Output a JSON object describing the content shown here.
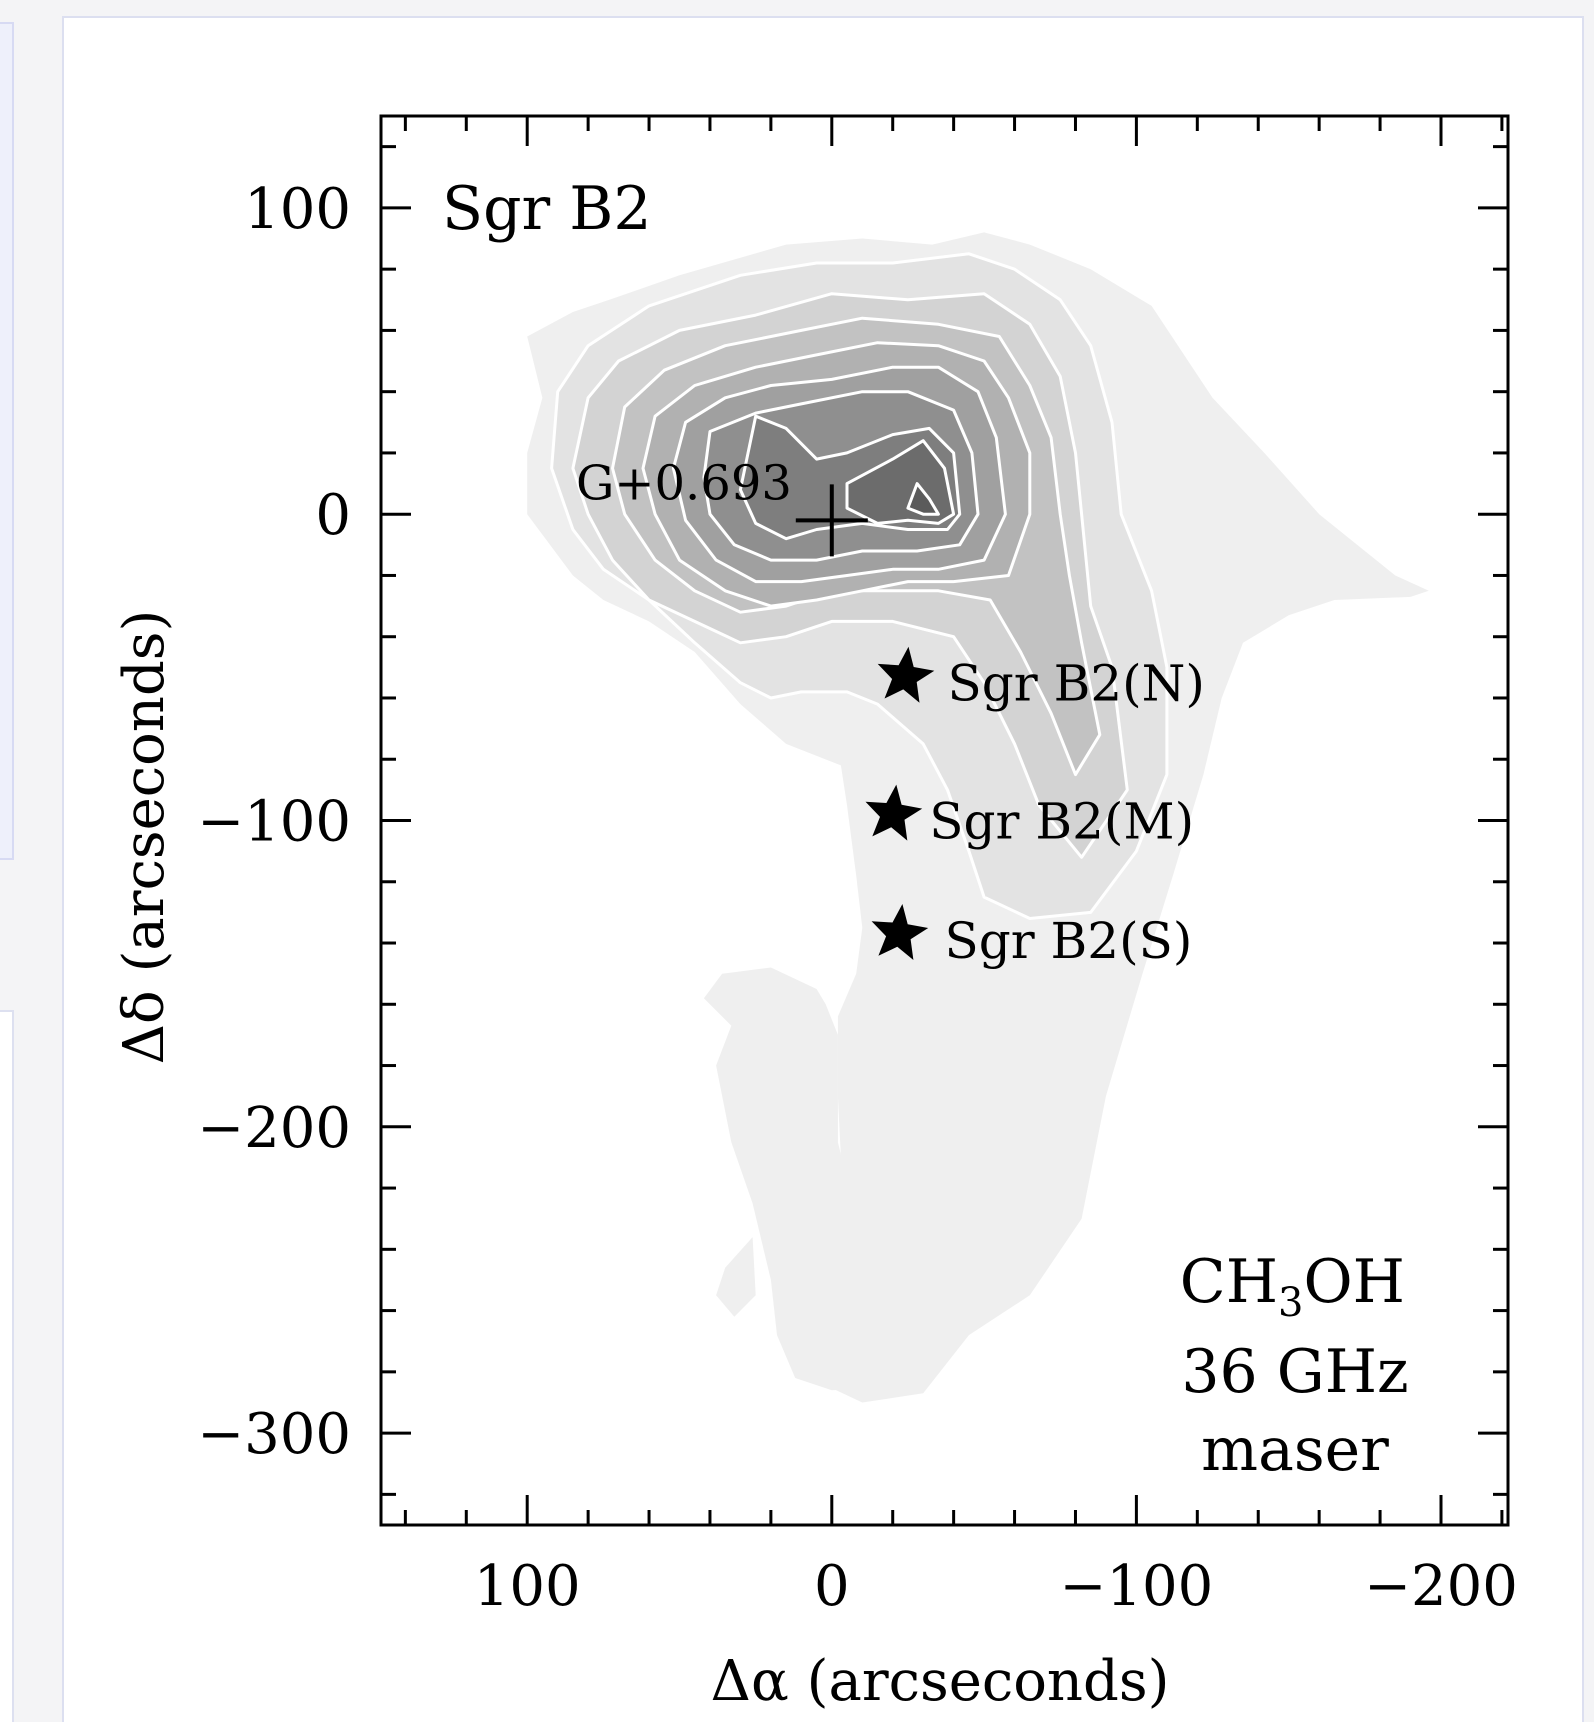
{
  "chart_data": {
    "type": "contour",
    "xlabel": "Δα (arcseconds)",
    "ylabel": "Δδ (arcseconds)",
    "xlim": [
      148,
      -222
    ],
    "ylim": [
      -330,
      130
    ],
    "x_reversed": true,
    "x_ticks": [
      100,
      0,
      -100,
      -200
    ],
    "x_tick_labels": [
      "100",
      "0",
      "−100",
      "−200"
    ],
    "y_ticks": [
      100,
      0,
      -100,
      -200,
      -300
    ],
    "y_tick_labels": [
      "100",
      "0",
      "−100",
      "−200",
      "−300"
    ],
    "x_minor_step": 20,
    "y_minor_step": 20,
    "grid": false,
    "title": "Sgr B2",
    "molecule_text": "CH",
    "molecule_sub": "3",
    "molecule_suffix": "OH",
    "line_text": "36 GHz",
    "type_text": "maser",
    "colors": {
      "levels": [
        "#efefef",
        "#e3e3e3",
        "#d3d3d3",
        "#c2c2c2",
        "#b1b1b1",
        "#a0a0a0",
        "#8f8f8f",
        "#7e7e7e",
        "#6c6c6c",
        "#5b5b5b"
      ],
      "contour_line": "#ffffff",
      "marker": "#000000"
    },
    "contour_levels": [
      {
        "level": 1,
        "polygons": [
          [
            [
              100,
              58
            ],
            [
              85,
              66
            ],
            [
              73,
              70
            ],
            [
              50,
              78
            ],
            [
              15,
              88
            ],
            [
              -10,
              90
            ],
            [
              -33,
              88
            ],
            [
              -50,
              92
            ],
            [
              -65,
              88
            ],
            [
              -85,
              80
            ],
            [
              -105,
              68
            ],
            [
              -125,
              38
            ],
            [
              -142,
              20
            ],
            [
              -160,
              0
            ],
            [
              -185,
              -20
            ],
            [
              -196,
              -25
            ],
            [
              -190,
              -27
            ],
            [
              -165,
              -28
            ],
            [
              -150,
              -33
            ],
            [
              -135,
              -42
            ],
            [
              -128,
              -60
            ],
            [
              -122,
              -85
            ],
            [
              -112,
              -118
            ],
            [
              -102,
              -150
            ],
            [
              -90,
              -190
            ],
            [
              -82,
              -230
            ],
            [
              -65,
              -255
            ],
            [
              -45,
              -268
            ],
            [
              -30,
              -287
            ],
            [
              -10,
              -290
            ],
            [
              5,
              -283
            ],
            [
              0,
              -270
            ],
            [
              -10,
              -255
            ],
            [
              -5,
              -240
            ],
            [
              -3,
              -210
            ],
            [
              -2,
              -190
            ],
            [
              -2,
              -164
            ],
            [
              -8,
              -150
            ],
            [
              -10,
              -135
            ],
            [
              -8,
              -118
            ],
            [
              -5,
              -95
            ],
            [
              -3,
              -82
            ],
            [
              15,
              -75
            ],
            [
              30,
              -62
            ],
            [
              45,
              -45
            ],
            [
              60,
              -35
            ],
            [
              75,
              -28
            ],
            [
              85,
              -20
            ],
            [
              100,
              0
            ],
            [
              100,
              20
            ],
            [
              95,
              38
            ],
            [
              100,
              58
            ]
          ],
          [
            [
              33,
              -167
            ],
            [
              42,
              -158
            ],
            [
              36,
              -150
            ],
            [
              20,
              -148
            ],
            [
              5,
              -155
            ],
            [
              2,
              -160
            ],
            [
              -2,
              -170
            ],
            [
              -2,
              -175
            ],
            [
              -2,
              -205
            ],
            [
              -8,
              -230
            ],
            [
              -15,
              -246
            ],
            [
              -20,
              -260
            ],
            [
              -25,
              -270
            ],
            [
              -30,
              -282
            ],
            [
              -18,
              -285
            ],
            [
              0,
              -286
            ],
            [
              12,
              -282
            ],
            [
              18,
              -268
            ],
            [
              20,
              -250
            ],
            [
              26,
              -225
            ],
            [
              33,
              -205
            ],
            [
              38,
              -180
            ],
            [
              33,
              -167
            ]
          ],
          [
            [
              26,
              -236
            ],
            [
              35,
              -246
            ],
            [
              38,
              -255
            ],
            [
              32,
              -262
            ],
            [
              25,
              -255
            ],
            [
              26,
              -236
            ]
          ]
        ]
      },
      {
        "level": 2,
        "polygons": [
          [
            [
              90,
              40
            ],
            [
              80,
              55
            ],
            [
              60,
              68
            ],
            [
              30,
              78
            ],
            [
              5,
              82
            ],
            [
              -20,
              82
            ],
            [
              -45,
              85
            ],
            [
              -60,
              80
            ],
            [
              -75,
              70
            ],
            [
              -85,
              55
            ],
            [
              -92,
              30
            ],
            [
              -95,
              0
            ],
            [
              -105,
              -25
            ],
            [
              -110,
              -50
            ],
            [
              -110,
              -85
            ],
            [
              -100,
              -110
            ],
            [
              -85,
              -130
            ],
            [
              -65,
              -132
            ],
            [
              -50,
              -125
            ],
            [
              -45,
              -110
            ],
            [
              -38,
              -90
            ],
            [
              -30,
              -75
            ],
            [
              -15,
              -62
            ],
            [
              -5,
              -58
            ],
            [
              10,
              -58
            ],
            [
              20,
              -60
            ],
            [
              30,
              -55
            ],
            [
              45,
              -42
            ],
            [
              60,
              -28
            ],
            [
              75,
              -18
            ],
            [
              85,
              -5
            ],
            [
              92,
              15
            ],
            [
              90,
              40
            ]
          ]
        ]
      },
      {
        "level": 3,
        "polygons": [
          [
            [
              80,
              38
            ],
            [
              70,
              50
            ],
            [
              50,
              60
            ],
            [
              25,
              65
            ],
            [
              0,
              72
            ],
            [
              -25,
              70
            ],
            [
              -50,
              72
            ],
            [
              -65,
              62
            ],
            [
              -75,
              45
            ],
            [
              -80,
              20
            ],
            [
              -82,
              0
            ],
            [
              -85,
              -30
            ],
            [
              -92,
              -50
            ],
            [
              -97,
              -90
            ],
            [
              -82,
              -112
            ],
            [
              -68,
              -95
            ],
            [
              -60,
              -75
            ],
            [
              -50,
              -55
            ],
            [
              -40,
              -40
            ],
            [
              -20,
              -35
            ],
            [
              0,
              -35
            ],
            [
              15,
              -40
            ],
            [
              30,
              -42
            ],
            [
              45,
              -35
            ],
            [
              60,
              -28
            ],
            [
              72,
              -15
            ],
            [
              80,
              0
            ],
            [
              85,
              15
            ],
            [
              80,
              38
            ]
          ]
        ]
      },
      {
        "level": 4,
        "polygons": [
          [
            [
              68,
              35
            ],
            [
              55,
              47
            ],
            [
              35,
              55
            ],
            [
              10,
              60
            ],
            [
              -10,
              64
            ],
            [
              -35,
              62
            ],
            [
              -55,
              58
            ],
            [
              -65,
              42
            ],
            [
              -72,
              25
            ],
            [
              -75,
              0
            ],
            [
              -78,
              -20
            ],
            [
              -82,
              -42
            ],
            [
              -88,
              -72
            ],
            [
              -80,
              -85
            ],
            [
              -72,
              -65
            ],
            [
              -62,
              -45
            ],
            [
              -52,
              -28
            ],
            [
              -35,
              -25
            ],
            [
              -15,
              -25
            ],
            [
              0,
              -25
            ],
            [
              15,
              -30
            ],
            [
              30,
              -32
            ],
            [
              45,
              -25
            ],
            [
              58,
              -15
            ],
            [
              68,
              0
            ],
            [
              72,
              15
            ],
            [
              68,
              35
            ]
          ]
        ]
      },
      {
        "level": 5,
        "polygons": [
          [
            [
              58,
              32
            ],
            [
              45,
              42
            ],
            [
              25,
              48
            ],
            [
              5,
              52
            ],
            [
              -15,
              56
            ],
            [
              -35,
              55
            ],
            [
              -50,
              50
            ],
            [
              -58,
              38
            ],
            [
              -65,
              20
            ],
            [
              -65,
              0
            ],
            [
              -58,
              -20
            ],
            [
              -40,
              -22
            ],
            [
              -25,
              -22
            ],
            [
              -10,
              -25
            ],
            [
              5,
              -28
            ],
            [
              20,
              -30
            ],
            [
              35,
              -25
            ],
            [
              50,
              -15
            ],
            [
              58,
              0
            ],
            [
              62,
              15
            ],
            [
              58,
              32
            ]
          ]
        ]
      },
      {
        "level": 6,
        "polygons": [
          [
            [
              48,
              30
            ],
            [
              35,
              38
            ],
            [
              20,
              42
            ],
            [
              0,
              44
            ],
            [
              -20,
              48
            ],
            [
              -35,
              48
            ],
            [
              -48,
              40
            ],
            [
              -54,
              25
            ],
            [
              -57,
              0
            ],
            [
              -50,
              -15
            ],
            [
              -35,
              -18
            ],
            [
              -20,
              -18
            ],
            [
              -5,
              -20
            ],
            [
              10,
              -22
            ],
            [
              25,
              -22
            ],
            [
              38,
              -15
            ],
            [
              48,
              -2
            ],
            [
              52,
              15
            ],
            [
              48,
              30
            ]
          ]
        ]
      },
      {
        "level": 7,
        "polygons": [
          [
            [
              40,
              27
            ],
            [
              25,
              33
            ],
            [
              10,
              36
            ],
            [
              -10,
              40
            ],
            [
              -25,
              40
            ],
            [
              -40,
              34
            ],
            [
              -46,
              20
            ],
            [
              -48,
              0
            ],
            [
              -42,
              -10
            ],
            [
              -28,
              -12
            ],
            [
              -10,
              -12
            ],
            [
              5,
              -15
            ],
            [
              20,
              -15
            ],
            [
              32,
              -10
            ],
            [
              40,
              0
            ],
            [
              42,
              12
            ],
            [
              40,
              27
            ]
          ]
        ]
      },
      {
        "level": 8,
        "polygons": [
          [
            [
              25,
              32
            ],
            [
              15,
              28
            ],
            [
              5,
              18
            ],
            [
              -5,
              20
            ],
            [
              -20,
              26
            ],
            [
              -32,
              28
            ],
            [
              -40,
              20
            ],
            [
              -42,
              0
            ],
            [
              -38,
              -5
            ],
            [
              -25,
              -5
            ],
            [
              -10,
              -3
            ],
            [
              5,
              -5
            ],
            [
              15,
              -8
            ],
            [
              25,
              -3
            ],
            [
              30,
              8
            ],
            [
              25,
              32
            ]
          ]
        ]
      },
      {
        "level": 9,
        "polygons": [
          [
            [
              -5,
              10
            ],
            [
              -20,
              18
            ],
            [
              -30,
              24
            ],
            [
              -37,
              15
            ],
            [
              -40,
              0
            ],
            [
              -35,
              -3
            ],
            [
              -25,
              -2
            ],
            [
              -15,
              -3
            ],
            [
              -5,
              2
            ],
            [
              -5,
              10
            ]
          ]
        ]
      },
      {
        "level": 10,
        "polygons": [
          [
            [
              -28,
              10
            ],
            [
              -32,
              5
            ],
            [
              -35,
              0
            ],
            [
              -30,
              0
            ],
            [
              -25,
              2
            ],
            [
              -28,
              10
            ]
          ]
        ]
      }
    ],
    "markers": [
      {
        "kind": "plus",
        "x": 0,
        "y": -2,
        "label": "G+0.693",
        "label_x": 84,
        "label_y": 10
      },
      {
        "kind": "star",
        "x": -24,
        "y": -53,
        "label": "Sgr B2(N)",
        "label_x": -38,
        "label_y": -55
      },
      {
        "kind": "star",
        "x": -20,
        "y": -98,
        "label": "Sgr B2(M)",
        "label_x": -32,
        "label_y": -100
      },
      {
        "kind": "star",
        "x": -22,
        "y": -137,
        "label": "Sgr B2(S)",
        "label_x": -37,
        "label_y": -139
      }
    ]
  }
}
